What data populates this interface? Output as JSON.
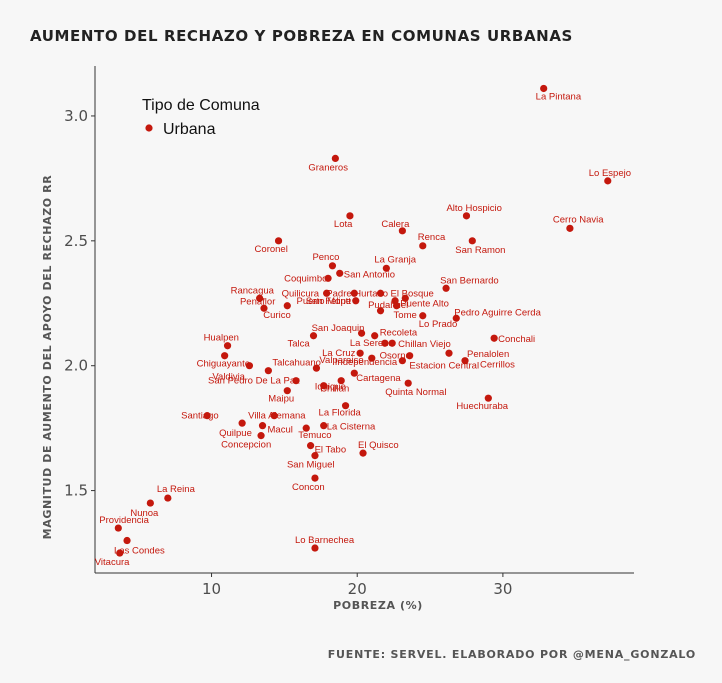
{
  "title": "AUMENTO DEL RECHAZO Y POBREZA EN COMUNAS URBANAS",
  "caption": "FUENTE: SERVEL. ELABORADO POR @MENA_GONZALO",
  "chart_data": {
    "type": "scatter",
    "xlabel": "POBREZA (%)",
    "ylabel": "MAGNITUD DE AUMENTO DEL APOYO DEL RECHAZO RR",
    "xlim": [
      2,
      39
    ],
    "ylim": [
      1.17,
      3.2
    ],
    "xticks": [
      10,
      20,
      30
    ],
    "yticks": [
      1.5,
      2.0,
      2.5,
      3.0
    ],
    "ytick_labels": [
      "1.5",
      "2.0",
      "2.5",
      "3.0"
    ],
    "grid": false,
    "legend": {
      "title": "Tipo de Comuna",
      "label": "Urbana",
      "position": "top-left"
    },
    "point_color": "#c4180d",
    "points": [
      {
        "name": "La Pintana",
        "x": 32.8,
        "y": 3.11
      },
      {
        "name": "Lo Espejo",
        "x": 37.2,
        "y": 2.74
      },
      {
        "name": "Graneros",
        "x": 18.5,
        "y": 2.83
      },
      {
        "name": "Lota",
        "x": 19.5,
        "y": 2.6
      },
      {
        "name": "Alto Hospicio",
        "x": 27.5,
        "y": 2.6
      },
      {
        "name": "Calera",
        "x": 23.1,
        "y": 2.54
      },
      {
        "name": "Cerro Navia",
        "x": 34.6,
        "y": 2.55
      },
      {
        "name": "Coronel",
        "x": 14.6,
        "y": 2.5
      },
      {
        "name": "Renca",
        "x": 24.5,
        "y": 2.48
      },
      {
        "name": "San Ramon",
        "x": 27.9,
        "y": 2.5
      },
      {
        "name": "Penco",
        "x": 18.3,
        "y": 2.4
      },
      {
        "name": "La Granja",
        "x": 22.0,
        "y": 2.39
      },
      {
        "name": "Coquimbo",
        "x": 18.0,
        "y": 2.35
      },
      {
        "name": "San Antonio",
        "x": 18.8,
        "y": 2.37
      },
      {
        "name": "San Bernardo",
        "x": 26.1,
        "y": 2.31
      },
      {
        "name": "Quilicura",
        "x": 17.9,
        "y": 2.29
      },
      {
        "name": "Padre Hurtado",
        "x": 19.8,
        "y": 2.29
      },
      {
        "name": "El Bosque",
        "x": 21.6,
        "y": 2.29
      },
      {
        "name": "Rancagua",
        "x": 13.3,
        "y": 2.27
      },
      {
        "name": "San Felipe",
        "x": 19.9,
        "y": 2.26
      },
      {
        "name": "Pudahuel",
        "x": 22.6,
        "y": 2.26
      },
      {
        "name": "Puente Alto",
        "x": 23.3,
        "y": 2.27
      },
      {
        "name": "Penaflor",
        "x": 13.6,
        "y": 2.23
      },
      {
        "name": "Curico",
        "x": 15.2,
        "y": 2.24
      },
      {
        "name": "Puerto Montt",
        "x": 21.6,
        "y": 2.22
      },
      {
        "name": "Tome",
        "x": 22.7,
        "y": 2.24
      },
      {
        "name": "Pedro Aguirre Cerda",
        "x": 26.8,
        "y": 2.19
      },
      {
        "name": "Lo Prado",
        "x": 24.5,
        "y": 2.2
      },
      {
        "name": "San Joaquin",
        "x": 20.3,
        "y": 2.13
      },
      {
        "name": "Recoleta",
        "x": 21.2,
        "y": 2.12
      },
      {
        "name": "Hualpen",
        "x": 11.1,
        "y": 2.08
      },
      {
        "name": "Talca",
        "x": 17.0,
        "y": 2.12
      },
      {
        "name": "Conchali",
        "x": 29.4,
        "y": 2.11
      },
      {
        "name": "La Serena",
        "x": 21.9,
        "y": 2.09
      },
      {
        "name": "Chillan Viejo",
        "x": 22.4,
        "y": 2.09
      },
      {
        "name": "Chiguayante",
        "x": 10.9,
        "y": 2.04
      },
      {
        "name": "La Cruz",
        "x": 20.2,
        "y": 2.05
      },
      {
        "name": "Osorno",
        "x": 23.6,
        "y": 2.04
      },
      {
        "name": "Penalolen",
        "x": 26.3,
        "y": 2.05
      },
      {
        "name": "Talcahuano",
        "x": 13.9,
        "y": 1.98
      },
      {
        "name": "Valdivia",
        "x": 12.6,
        "y": 2.0
      },
      {
        "name": "Independencia",
        "x": 21.0,
        "y": 2.03
      },
      {
        "name": "Estacion Central",
        "x": 23.1,
        "y": 2.02
      },
      {
        "name": "Cerrillos",
        "x": 27.4,
        "y": 2.02
      },
      {
        "name": "Valparaiso",
        "x": 17.2,
        "y": 1.99
      },
      {
        "name": "Cartagena",
        "x": 19.8,
        "y": 1.97
      },
      {
        "name": "San Pedro De La Paz",
        "x": 15.8,
        "y": 1.94
      },
      {
        "name": "Maipu",
        "x": 15.2,
        "y": 1.9
      },
      {
        "name": "Chillan",
        "x": 18.9,
        "y": 1.94
      },
      {
        "name": "Iquique",
        "x": 17.7,
        "y": 1.92
      },
      {
        "name": "Quinta Normal",
        "x": 23.5,
        "y": 1.93
      },
      {
        "name": "Huechuraba",
        "x": 29.0,
        "y": 1.87
      },
      {
        "name": "Santiago",
        "x": 9.7,
        "y": 1.8
      },
      {
        "name": "Villa Alemana",
        "x": 14.3,
        "y": 1.8
      },
      {
        "name": "La Florida",
        "x": 19.2,
        "y": 1.84
      },
      {
        "name": "Quilpue",
        "x": 12.1,
        "y": 1.77
      },
      {
        "name": "Macul",
        "x": 13.5,
        "y": 1.76
      },
      {
        "name": "La Cisterna",
        "x": 17.7,
        "y": 1.76
      },
      {
        "name": "Concepcion",
        "x": 13.4,
        "y": 1.72
      },
      {
        "name": "Temuco",
        "x": 16.5,
        "y": 1.75
      },
      {
        "name": "El Quisco",
        "x": 20.4,
        "y": 1.65
      },
      {
        "name": "El Tabo",
        "x": 16.8,
        "y": 1.68
      },
      {
        "name": "San Miguel",
        "x": 17.1,
        "y": 1.64
      },
      {
        "name": "Concon",
        "x": 17.1,
        "y": 1.55
      },
      {
        "name": "La Reina",
        "x": 7.0,
        "y": 1.47
      },
      {
        "name": "Nunoa",
        "x": 5.8,
        "y": 1.45
      },
      {
        "name": "Providencia",
        "x": 3.6,
        "y": 1.35
      },
      {
        "name": "Las Condes",
        "x": 4.2,
        "y": 1.3
      },
      {
        "name": "Vitacura",
        "x": 3.7,
        "y": 1.25
      },
      {
        "name": "Lo Barnechea",
        "x": 17.1,
        "y": 1.27
      }
    ]
  }
}
